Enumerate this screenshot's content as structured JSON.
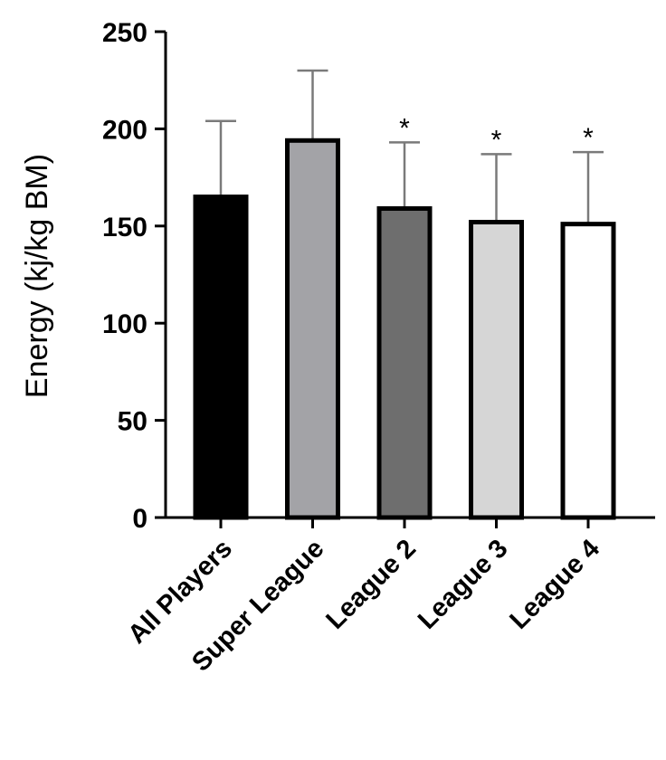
{
  "chart_data": {
    "type": "bar",
    "title": "",
    "xlabel": "",
    "ylabel": "Energy (kj/kg BM)",
    "ylim": [
      0,
      250
    ],
    "yticks": [
      0,
      50,
      100,
      150,
      200,
      250
    ],
    "categories": [
      "All Players",
      "Super League",
      "League 2",
      "League 3",
      "League 4"
    ],
    "values": [
      165,
      194,
      159,
      152,
      151
    ],
    "error_upper": [
      204,
      230,
      193,
      187,
      188
    ],
    "fill_colors": [
      "#000000",
      "#a3a3a7",
      "#6e6e6e",
      "#d6d6d6",
      "#ffffff"
    ],
    "significance": [
      "",
      "",
      "*",
      "*",
      "*"
    ],
    "grid": false,
    "legend": "none"
  }
}
